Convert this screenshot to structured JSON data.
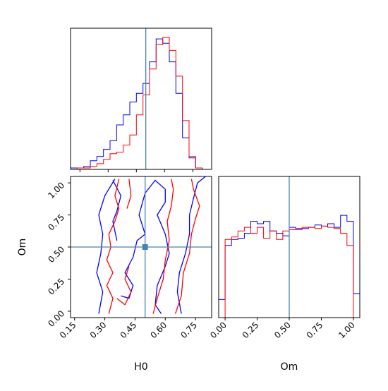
{
  "chart_data": [
    {
      "panel": "H0 marginal histogram",
      "type": "histogram",
      "x_param": "H0",
      "xlim": [
        0.1,
        0.85
      ],
      "truth": 0.5,
      "bin_edges": [
        0.1,
        0.135,
        0.17,
        0.205,
        0.24,
        0.275,
        0.31,
        0.345,
        0.38,
        0.415,
        0.45,
        0.485,
        0.52,
        0.555,
        0.59,
        0.625,
        0.66,
        0.695,
        0.73,
        0.765,
        0.8,
        0.835
      ],
      "series": [
        {
          "color": "#0000ff",
          "values": [
            1,
            1,
            2,
            6,
            9,
            14,
            20,
            31,
            38,
            47,
            53,
            60,
            75,
            91,
            88,
            75,
            53,
            22,
            8,
            1,
            0
          ]
        },
        {
          "color": "#ff0000",
          "values": [
            0,
            1,
            1,
            2,
            4,
            7,
            11,
            12,
            17,
            24,
            38,
            52,
            70,
            87,
            92,
            83,
            65,
            34,
            9,
            1,
            0
          ]
        }
      ]
    },
    {
      "panel": "H0 vs Om 2D contour",
      "type": "contour",
      "xlabel": "H0",
      "ylabel": "Om",
      "xlim": [
        0.13,
        0.83
      ],
      "ylim": [
        -0.05,
        1.05
      ],
      "x_ticks": [
        "0.15",
        "0.30",
        "0.45",
        "0.60",
        "0.75"
      ],
      "y_ticks": [
        "0.00",
        "0.25",
        "0.50",
        "0.75",
        "1.00"
      ],
      "truth": [
        0.5,
        0.5
      ],
      "contours": [
        {
          "color": "#0000ff",
          "points": [
            [
              0.27,
              -0.02
            ],
            [
              0.29,
              0.15
            ],
            [
              0.26,
              0.3
            ],
            [
              0.28,
              0.45
            ],
            [
              0.29,
              0.6
            ],
            [
              0.27,
              0.75
            ],
            [
              0.3,
              0.9
            ],
            [
              0.35,
              1.03
            ]
          ]
        },
        {
          "color": "#0000ff",
          "points": [
            [
              0.34,
              1.02
            ],
            [
              0.38,
              0.9
            ],
            [
              0.36,
              0.78
            ],
            [
              0.34,
              0.7
            ],
            [
              0.36,
              0.55
            ]
          ]
        },
        {
          "color": "#0000ff",
          "points": [
            [
              0.38,
              0.12
            ],
            [
              0.42,
              0.1
            ],
            [
              0.44,
              0.2
            ],
            [
              0.4,
              0.3
            ],
            [
              0.44,
              0.42
            ],
            [
              0.46,
              0.55
            ],
            [
              0.5,
              0.6
            ],
            [
              0.47,
              0.75
            ],
            [
              0.5,
              0.92
            ],
            [
              0.55,
              1.02
            ],
            [
              0.6,
              0.95
            ],
            [
              0.6,
              0.85
            ],
            [
              0.56,
              0.75
            ],
            [
              0.6,
              0.6
            ],
            [
              0.62,
              0.45
            ],
            [
              0.6,
              0.35
            ],
            [
              0.56,
              0.2
            ],
            [
              0.55,
              0.05
            ],
            [
              0.58,
              -0.02
            ]
          ]
        },
        {
          "color": "#0000ff",
          "points": [
            [
              0.68,
              -0.02
            ],
            [
              0.66,
              0.15
            ],
            [
              0.67,
              0.3
            ],
            [
              0.7,
              0.45
            ],
            [
              0.72,
              0.6
            ],
            [
              0.72,
              0.75
            ],
            [
              0.74,
              0.88
            ],
            [
              0.76,
              1.0
            ],
            [
              0.8,
              1.05
            ]
          ]
        },
        {
          "color": "#ff0000",
          "points": [
            [
              0.32,
              -0.02
            ],
            [
              0.34,
              0.1
            ],
            [
              0.31,
              0.2
            ],
            [
              0.34,
              0.3
            ],
            [
              0.31,
              0.4
            ],
            [
              0.33,
              0.5
            ],
            [
              0.32,
              0.6
            ],
            [
              0.35,
              0.7
            ],
            [
              0.37,
              0.8
            ],
            [
              0.35,
              0.9
            ],
            [
              0.37,
              1.03
            ]
          ]
        },
        {
          "color": "#ff0000",
          "points": [
            [
              0.42,
              1.03
            ],
            [
              0.43,
              0.9
            ],
            [
              0.41,
              0.8
            ]
          ]
        },
        {
          "color": "#ff0000",
          "points": [
            [
              0.36,
              0.1
            ],
            [
              0.4,
              0.05
            ],
            [
              0.43,
              0.15
            ],
            [
              0.4,
              0.25
            ],
            [
              0.42,
              0.35
            ]
          ]
        },
        {
          "color": "#ff0000",
          "points": [
            [
              0.54,
              -0.02
            ],
            [
              0.56,
              0.1
            ],
            [
              0.59,
              0.25
            ],
            [
              0.6,
              0.4
            ],
            [
              0.62,
              0.55
            ],
            [
              0.61,
              0.7
            ],
            [
              0.63,
              0.82
            ],
            [
              0.64,
              0.95
            ],
            [
              0.63,
              1.03
            ]
          ]
        },
        {
          "color": "#ff0000",
          "points": [
            [
              0.65,
              -0.02
            ],
            [
              0.68,
              0.12
            ],
            [
              0.69,
              0.3
            ],
            [
              0.72,
              0.45
            ],
            [
              0.73,
              0.6
            ],
            [
              0.75,
              0.72
            ],
            [
              0.77,
              0.82
            ],
            [
              0.74,
              0.95
            ],
            [
              0.73,
              1.03
            ]
          ]
        }
      ]
    },
    {
      "panel": "Om marginal histogram",
      "type": "histogram",
      "x_param": "Om",
      "xlabel": "Om",
      "xlim": [
        -0.05,
        1.05
      ],
      "truth": 0.5,
      "x_ticks": [
        "0.00",
        "0.25",
        "0.50",
        "0.75",
        "1.00"
      ],
      "bin_edges": [
        -0.05,
        0.0,
        0.05,
        0.1,
        0.15,
        0.2,
        0.25,
        0.3,
        0.35,
        0.4,
        0.45,
        0.5,
        0.55,
        0.6,
        0.65,
        0.7,
        0.75,
        0.8,
        0.85,
        0.9,
        0.95,
        1.0,
        1.05
      ],
      "series": [
        {
          "color": "#0000ff",
          "values": [
            15,
            60,
            65,
            66,
            70,
            80,
            78,
            80,
            72,
            70,
            68,
            75,
            74,
            74,
            75,
            77,
            76,
            78,
            75,
            85,
            80,
            20
          ]
        },
        {
          "color": "#ff0000",
          "values": [
            0,
            65,
            67,
            72,
            75,
            70,
            75,
            66,
            72,
            65,
            72,
            73,
            73,
            75,
            75,
            74,
            76,
            75,
            74,
            70,
            60,
            0
          ]
        }
      ]
    }
  ]
}
